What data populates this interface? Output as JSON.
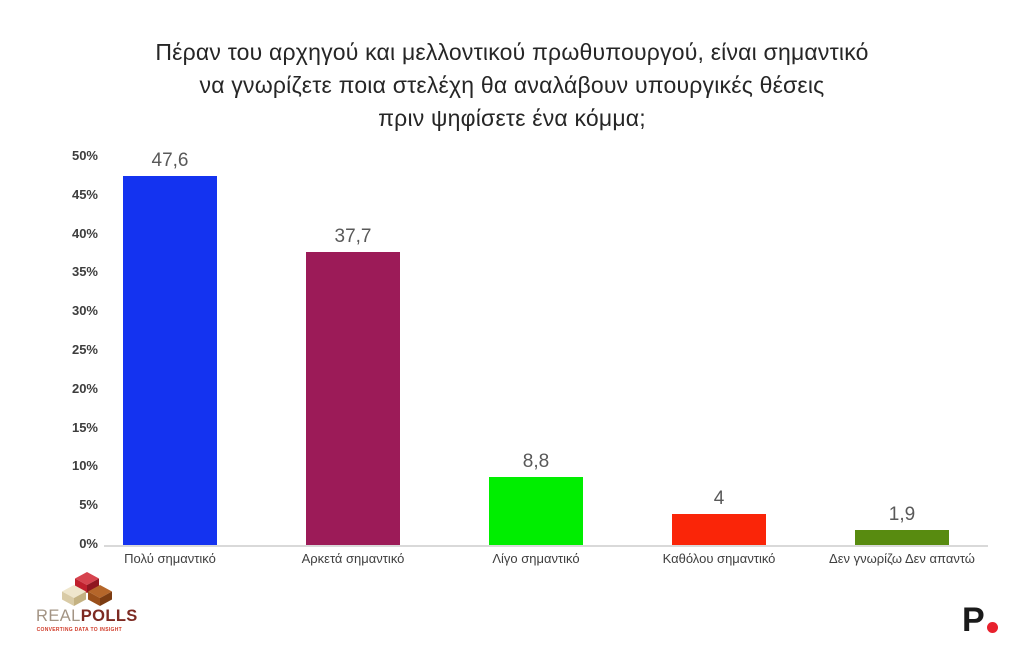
{
  "title": {
    "lines": [
      "Πέραν του αρχηγού και μελλοντικού πρωθυπουργού, είναι σημαντικό",
      "να γνωρίζετε ποια στελέχη θα αναλάβουν υπουργικές θέσεις",
      "πριν ψηφίσετε ένα κόμμα;"
    ]
  },
  "chart_data": {
    "type": "bar",
    "categories": [
      "Πολύ σημαντικό",
      "Αρκετά σημαντικό",
      "Λίγο σημαντικό",
      "Καθόλου σημαντικό",
      "Δεν γνωρίζω Δεν απαντώ"
    ],
    "values": [
      47.6,
      37.7,
      8.8,
      4,
      1.9
    ],
    "value_labels": [
      "47,6",
      "37,7",
      "8,8",
      "4",
      "1,9"
    ],
    "bar_colors": [
      "#1433F0",
      "#9C1B58",
      "#00EE00",
      "#FA2508",
      "#588B10"
    ],
    "title": "Πέραν του αρχηγού και μελλοντικού πρωθυπουργού, είναι σημαντικό να γνωρίζετε ποια στελέχη θα αναλάβουν υπουργικές θέσεις πριν ψηφίσετε ένα κόμμα;",
    "xlabel": "",
    "ylabel": "",
    "ylim": [
      0,
      50
    ],
    "yticks": [
      "0%",
      "5%",
      "10%",
      "15%",
      "20%",
      "25%",
      "30%",
      "35%",
      "40%",
      "45%",
      "50%"
    ],
    "grid": false,
    "legend": "none",
    "baseline_color": "#d9d9d9"
  },
  "branding": {
    "realpolls": {
      "word_part1": "REAL",
      "word_part2": "POLLS",
      "tagline": "CONVERTING DATA TO INSIGHT",
      "cube_red": "#c92533",
      "cube_cream": "#e9dfc2",
      "cube_brown": "#a2571c"
    },
    "publisher": {
      "letter": "P",
      "dot_color": "#e8212d"
    }
  }
}
